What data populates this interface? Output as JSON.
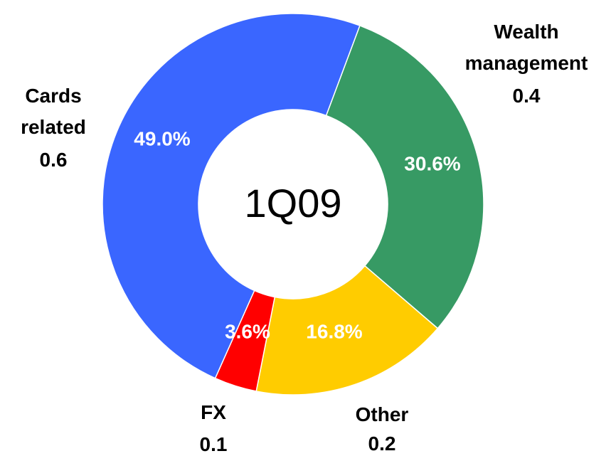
{
  "chart_data": {
    "type": "donut",
    "center_label": "1Q09",
    "categories": [
      "Wealth management",
      "Other",
      "FX",
      "Cards related"
    ],
    "values": [
      30.6,
      16.8,
      3.6,
      49.0
    ],
    "value_labels": [
      "30.6%",
      "16.8%",
      "3.6%",
      "49.0%"
    ],
    "amounts": [
      0.4,
      0.2,
      0.1,
      0.6
    ],
    "colors": [
      "#379a64",
      "#ffcc00",
      "#ff0000",
      "#3a66ff"
    ]
  }
}
